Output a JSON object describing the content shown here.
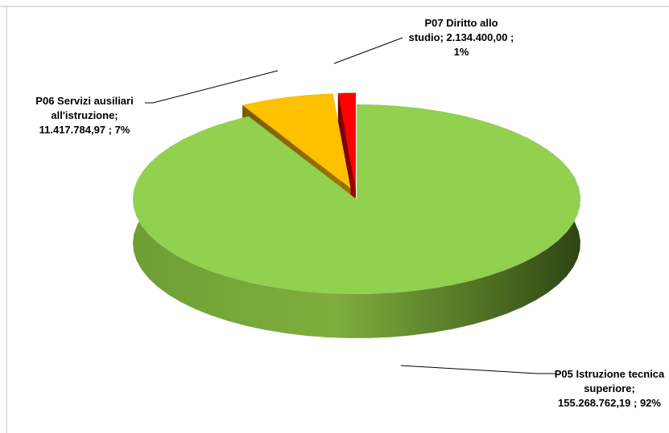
{
  "chart_data": {
    "type": "pie",
    "style": "3d-exploded",
    "slices": [
      {
        "name": "P05 Istruzione tecnica superiore",
        "value": 155268762.19,
        "value_label": "155.268.762,19",
        "percent_label": "92%",
        "color": "#92D050",
        "label_lines": [
          "P05 Istruzione tecnica",
          "superiore;",
          "155.268.762,19 ; 92%"
        ]
      },
      {
        "name": "P06 Servizi ausiliari all'istruzione",
        "value": 11417784.97,
        "value_label": "11.417.784,97",
        "percent_label": "7%",
        "color": "#FFC000",
        "label_lines": [
          "P06 Servizi ausiliari",
          "all'istruzione;",
          "11.417.784,97 ; 7%"
        ]
      },
      {
        "name": "P07 Diritto allo studio",
        "value": 2134400.0,
        "value_label": "2.134.400,00",
        "percent_label": "1%",
        "color": "#FF0000",
        "label_lines": [
          "P07 Diritto allo",
          "studio;  2.134.400,00 ;",
          "1%"
        ]
      }
    ],
    "legend": "none"
  }
}
